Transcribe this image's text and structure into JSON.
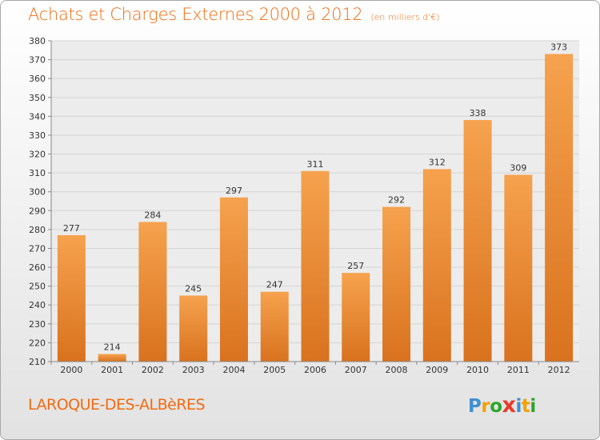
{
  "header": {
    "title": "Achats et Charges Externes 2000 à 2012",
    "subtitle": "(en milliers d'€)"
  },
  "footer": {
    "town": "LAROQUE-DES-ALBèRES"
  },
  "logo": {
    "letters": [
      "P",
      "r",
      "o",
      "x",
      "i",
      "t",
      "i"
    ],
    "colors": [
      "#3f8fd2",
      "#f5a000",
      "#2aa52a",
      "#e73a2a",
      "#3f8fd2",
      "#f5a000",
      "#2aa52a"
    ]
  },
  "colors": {
    "bar_top": "#f6a24e",
    "bar_bottom": "#d9721e",
    "accent": "#f26b10",
    "grid": "#d4d4d4"
  },
  "chart_data": {
    "type": "bar",
    "title": "Achats et Charges Externes 2000 à 2012",
    "subtitle": "(en milliers d'€)",
    "categories": [
      "2000",
      "2001",
      "2002",
      "2003",
      "2004",
      "2005",
      "2006",
      "2007",
      "2008",
      "2009",
      "2010",
      "2011",
      "2012"
    ],
    "values": [
      277,
      214,
      284,
      245,
      297,
      247,
      311,
      257,
      292,
      312,
      338,
      309,
      373
    ],
    "ylim": [
      210,
      380
    ],
    "yticks": [
      210,
      220,
      230,
      240,
      250,
      260,
      270,
      280,
      290,
      300,
      310,
      320,
      330,
      340,
      350,
      360,
      370,
      380
    ],
    "grid": true,
    "data_labels": true
  }
}
